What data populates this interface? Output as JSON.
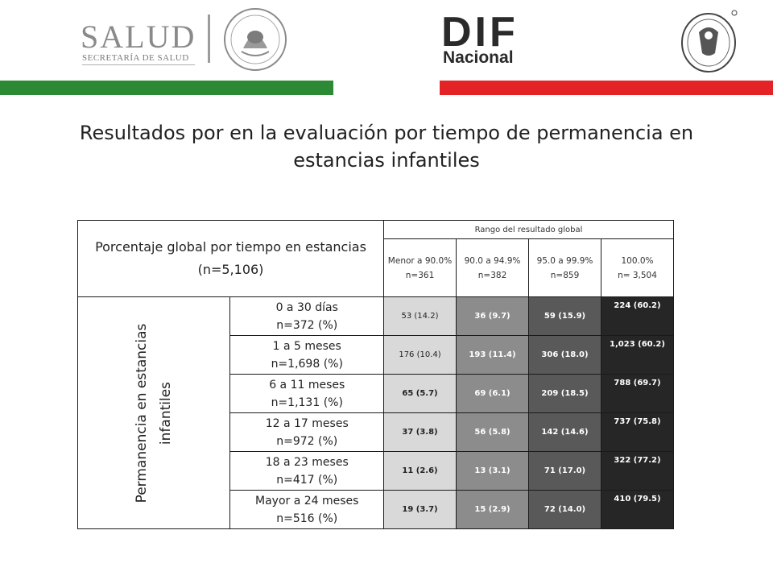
{
  "header": {
    "salud_word": "SALUD",
    "salud_sub": "SECRETARÍA DE SALUD",
    "dif_word": "DIF",
    "dif_sub": "Nacional",
    "colors": {
      "green_bar": "#2d8a34",
      "red_bar": "#e32326"
    }
  },
  "title": "Resultados por en la evaluación por tiempo de permanencia en estancias infantiles",
  "table": {
    "header_label": "Porcentaje global por tiempo en estancias (n=5,106)",
    "range_label": "Rango del resultado global",
    "columns": [
      {
        "range": "Menor a 90.0%",
        "n": "n=361"
      },
      {
        "range": "90.0 a 94.9%",
        "n": "n=382"
      },
      {
        "range": "95.0 a 99.9%",
        "n": "n=859"
      },
      {
        "range": "100.0%",
        "n": "n= 3,504"
      }
    ],
    "side_label": "Permanencia en estancias infantiles",
    "rows": [
      {
        "label": "0 a 30 días",
        "n": "n=372 (%)",
        "values": [
          "53 (14.2)",
          "36 (9.7)",
          "59 (15.9)",
          "224 (60.2)"
        ]
      },
      {
        "label": "1 a 5 meses",
        "n": "n=1,698 (%)",
        "values": [
          "176 (10.4)",
          "193 (11.4)",
          "306 (18.0)",
          "1,023 (60.2)"
        ]
      },
      {
        "label": "6 a 11 meses",
        "n": "n=1,131 (%)",
        "values": [
          "65 (5.7)",
          "69 (6.1)",
          "209 (18.5)",
          "788 (69.7)"
        ]
      },
      {
        "label": "12 a 17 meses",
        "n": "n=972 (%)",
        "values": [
          "37 (3.8)",
          "56 (5.8)",
          "142 (14.6)",
          "737 (75.8)"
        ]
      },
      {
        "label": "18 a 23 meses",
        "n": "n=417 (%)",
        "values": [
          "11 (2.6)",
          "13 (3.1)",
          "71 (17.0)",
          "322 (77.2)"
        ]
      },
      {
        "label": "Mayor a 24 meses",
        "n": "n=516 (%)",
        "values": [
          "19 (3.7)",
          "15 (2.9)",
          "72 (14.0)",
          "410 (79.5)"
        ]
      }
    ]
  }
}
